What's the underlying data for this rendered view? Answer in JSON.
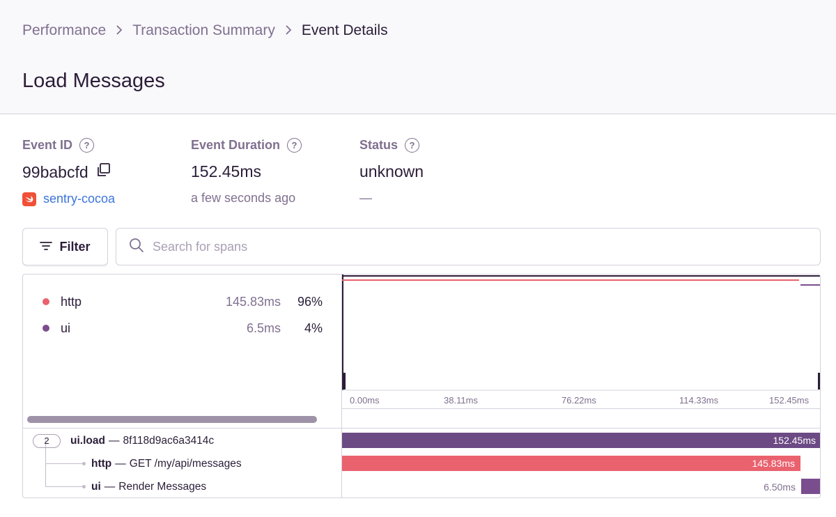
{
  "breadcrumb": {
    "items": [
      "Performance",
      "Transaction Summary",
      "Event Details"
    ]
  },
  "page_title": "Load Messages",
  "event_id": {
    "label": "Event ID",
    "value": "99babcfd",
    "project": "sentry-cocoa"
  },
  "event_duration": {
    "label": "Event Duration",
    "value": "152.45ms",
    "sub": "a few seconds ago"
  },
  "status": {
    "label": "Status",
    "value": "unknown",
    "sub": "—"
  },
  "filter": {
    "label": "Filter"
  },
  "search": {
    "placeholder": "Search for spans"
  },
  "ops_breakdown": [
    {
      "name": "http",
      "duration": "145.83ms",
      "percent": "96%",
      "color": "#e9626e"
    },
    {
      "name": "ui",
      "duration": "6.5ms",
      "percent": "4%",
      "color": "#7a4d8f"
    }
  ],
  "timeline": {
    "ticks": [
      "0.00ms",
      "38.11ms",
      "76.22ms",
      "114.33ms",
      "152.45ms"
    ]
  },
  "spans": [
    {
      "count": "2",
      "op": "ui.load",
      "description": "8f118d9ac6a3414c",
      "duration": "152.45ms",
      "start_ms": 0,
      "duration_ms": 152.45,
      "color": "#6c4a84"
    },
    {
      "op": "http",
      "description": "GET /my/api/messages",
      "duration": "145.83ms",
      "start_ms": 0,
      "duration_ms": 145.83,
      "color": "#e9626e"
    },
    {
      "op": "ui",
      "description": "Render Messages",
      "duration": "6.50ms",
      "start_ms": 145.95,
      "duration_ms": 6.5,
      "color": "#7a4d8f"
    }
  ],
  "colors": {
    "accent": "#3d74db",
    "text": "#2b1d38",
    "muted": "#80708f",
    "border": "#d6d0dc"
  }
}
